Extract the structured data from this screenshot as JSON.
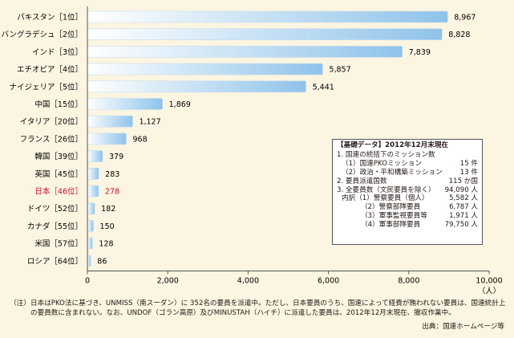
{
  "chart_data": {
    "type": "bar",
    "orientation": "horizontal",
    "categories": [
      "パキスタン［1位］",
      "バングラデシュ［2位］",
      "インド［3位］",
      "エチオピア［4位］",
      "ナイジェリア［5位］",
      "中国［15位］",
      "イタリア［20位］",
      "フランス［26位］",
      "韓国［39位］",
      "英国［45位］",
      "日本［46位］",
      "ドイツ［52位］",
      "カナダ［55位］",
      "米国［57位］",
      "ロシア［64位］"
    ],
    "values": [
      8967,
      8828,
      7839,
      5857,
      5441,
      1869,
      1127,
      968,
      379,
      283,
      278,
      182,
      150,
      128,
      86
    ],
    "value_labels": [
      "8,967",
      "8,828",
      "7,839",
      "5,857",
      "5,441",
      "1,869",
      "1,127",
      "968",
      "379",
      "283",
      "278",
      "182",
      "150",
      "128",
      "86"
    ],
    "highlight_category": "日本［46位］",
    "highlight_color": "#c8102e",
    "bar_color_start": "#ffffff",
    "bar_color_end": "#8fc3ea",
    "xlim": [
      0,
      10000
    ],
    "xticks": [
      0,
      2000,
      4000,
      6000,
      8000,
      10000
    ],
    "xtick_labels": [
      "0",
      "2,000",
      "4,000",
      "6,000",
      "8,000",
      "10,000"
    ],
    "xunit": "（人）",
    "grid": false
  },
  "data_box": {
    "title": "【基礎データ】2012年12月末現在",
    "rows": [
      {
        "label": "1. 国連の統括下のミッション数",
        "value": "",
        "indent": 0
      },
      {
        "label": "（1）国連PKOミッション",
        "value": "15 件",
        "indent": 1
      },
      {
        "label": "（2）政治・平和構築ミッション",
        "value": "13 件",
        "indent": 1
      },
      {
        "label": "2. 要員派遣国数",
        "value": "115 か国",
        "indent": 0
      },
      {
        "label": "3. 全要員数（文民要員を除く）",
        "value": "94,090 人",
        "indent": 0
      },
      {
        "label": "内訳（1）警察要員（個人）",
        "value": "5,582 人",
        "indent": 1
      },
      {
        "label": "（2）警察部隊要員",
        "value": "6,787 人",
        "indent": 2
      },
      {
        "label": "（3）軍事監視要員等",
        "value": "1,971 人",
        "indent": 2
      },
      {
        "label": "（4）軍事部隊要員",
        "value": "79,750 人",
        "indent": 2
      }
    ]
  },
  "notes": {
    "label": "（注）",
    "text": "日本はPKO法に基づき、UNMISS（南スーダン）に 352名の要員を派遣中。ただし、日本要員のうち、国連によって経費が賄われない要員は、国連統計上の要員数に含まれない。なお、UNDOF（ゴラン高原）及びMINUSTAH（ハイチ）に派遣した要員は、2012年12月末現在、撤収作業中。"
  },
  "source": "出典：国連ホームページ等"
}
